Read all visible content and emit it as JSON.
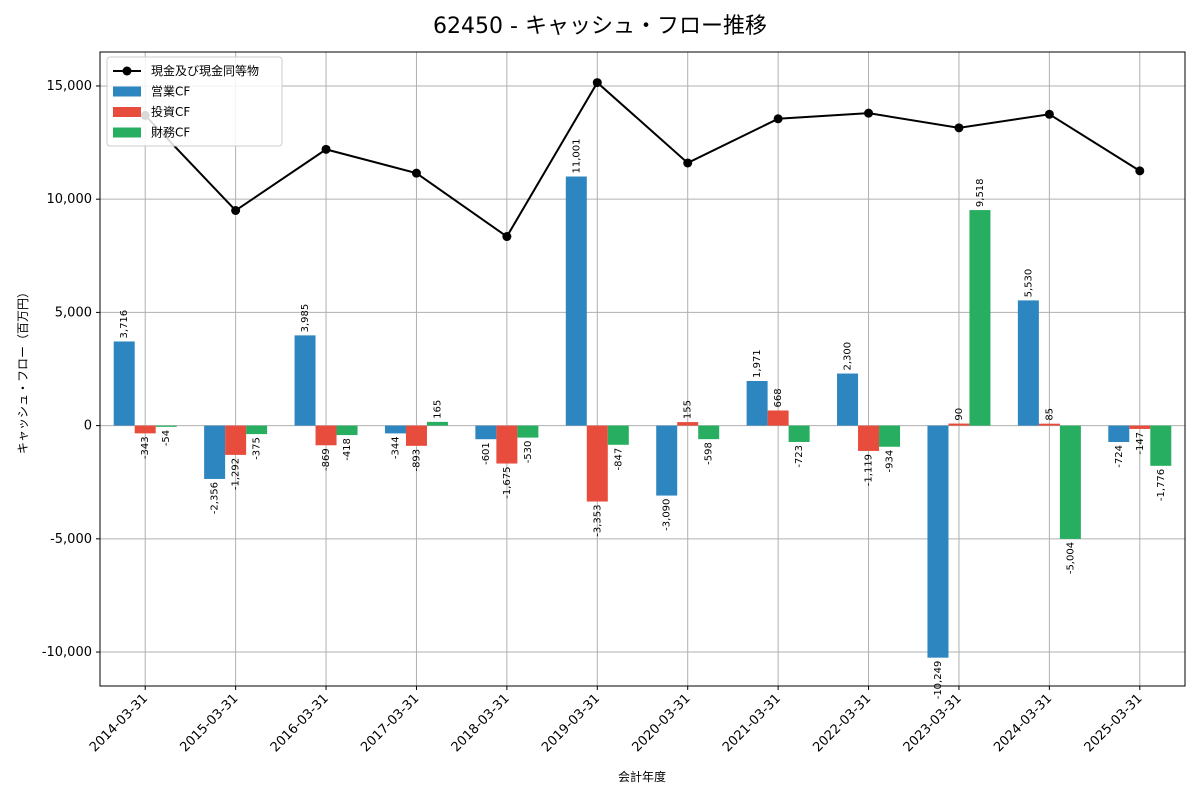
{
  "chart_data": {
    "type": "bar",
    "title": "62450 - キャッシュ・フロー推移",
    "xlabel": "会計年度",
    "ylabel": "キャッシュ・フロー（百万円）",
    "categories": [
      "2014-03-31",
      "2015-03-31",
      "2016-03-31",
      "2017-03-31",
      "2018-03-31",
      "2019-03-31",
      "2020-03-31",
      "2021-03-31",
      "2022-03-31",
      "2023-03-31",
      "2024-03-31",
      "2025-03-31"
    ],
    "ylim": [
      -11500,
      16500
    ],
    "yticks": [
      -10000,
      -5000,
      0,
      5000,
      10000,
      15000
    ],
    "ytick_labels": [
      "-10,000",
      "-5,000",
      "0",
      "5,000",
      "10,000",
      "15,000"
    ],
    "grid": true,
    "legend_position": "top-left",
    "series": [
      {
        "name": "営業CF",
        "kind": "bar",
        "color": "#2e86c1",
        "values": [
          3716,
          -2356,
          3985,
          -344,
          -601,
          11001,
          -3090,
          1971,
          2300,
          -10249,
          5530,
          -724
        ],
        "labels": [
          "3,716",
          "-2,356",
          "3,985",
          "-344",
          "-601",
          "11,001",
          "-3,090",
          "1,971",
          "2,300",
          "-10,249",
          "5,530",
          "-724"
        ]
      },
      {
        "name": "投資CF",
        "kind": "bar",
        "color": "#e74c3c",
        "values": [
          -343,
          -1292,
          -869,
          -893,
          -1675,
          -3353,
          155,
          668,
          -1119,
          90,
          85,
          -147
        ],
        "labels": [
          "-343",
          "-1,292",
          "-869",
          "-893",
          "-1,675",
          "-3,353",
          "155",
          "668",
          "-1,119",
          "90",
          "85",
          "-147"
        ]
      },
      {
        "name": "財務CF",
        "kind": "bar",
        "color": "#27ae60",
        "values": [
          -54,
          -375,
          -418,
          165,
          -530,
          -847,
          -598,
          -723,
          -934,
          9518,
          -5004,
          -1776
        ],
        "labels": [
          "-54",
          "-375",
          "-418",
          "165",
          "-530",
          "-847",
          "-598",
          "-723",
          "-934",
          "9,518",
          "-5,004",
          "-1,776"
        ]
      },
      {
        "name": "現金及び現金同等物",
        "kind": "line",
        "color": "#000000",
        "values": [
          13700,
          9500,
          12200,
          11150,
          8350,
          15150,
          11600,
          13550,
          13800,
          13150,
          13750,
          11250
        ]
      }
    ]
  }
}
